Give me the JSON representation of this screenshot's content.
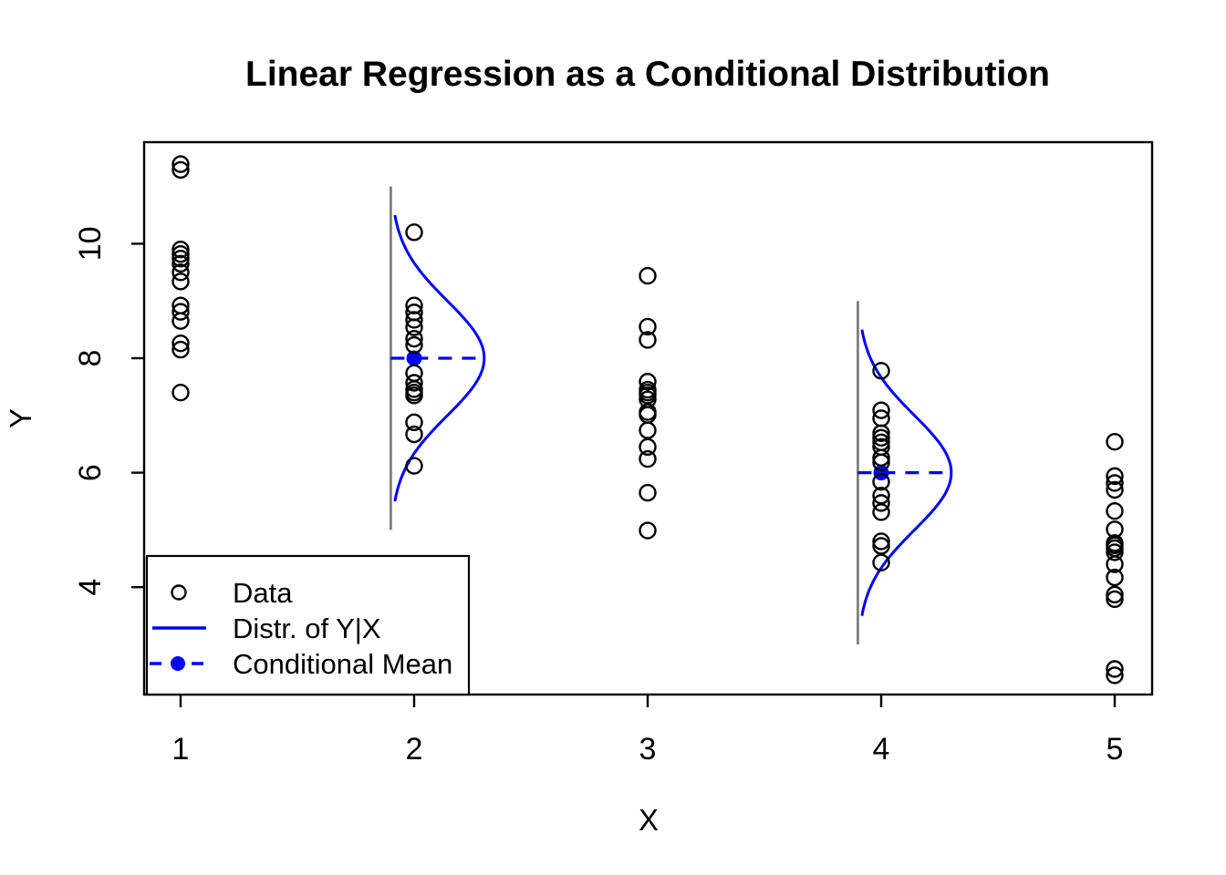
{
  "title": "Linear Regression as a Conditional Distribution",
  "axes": {
    "xlabel": "X",
    "ylabel": "Y"
  },
  "legend": {
    "items": [
      {
        "symbol": "open-circle",
        "label": "Data"
      },
      {
        "symbol": "solid-line",
        "label": "Distr. of Y|X"
      },
      {
        "symbol": "dashed-line-with-dot",
        "label": "Conditional Mean"
      }
    ]
  },
  "colors": {
    "accent_blue": "#0000FF",
    "support_gray": "#7F7F7F",
    "foreground": "#000000",
    "background": "#FFFFFF"
  },
  "chart_data": {
    "type": "scatter",
    "title": "Linear Regression as a Conditional Distribution",
    "xlabel": "X",
    "ylabel": "Y",
    "xlim": [
      0.84,
      5.17
    ],
    "ylim": [
      2.1,
      11.8
    ],
    "x_ticks": [
      1,
      2,
      3,
      4,
      5
    ],
    "y_ticks": [
      4,
      6,
      8,
      10
    ],
    "grid": false,
    "legend_position": "bottom-left",
    "point_style": "open-circle",
    "series": [
      {
        "x": 1,
        "values": [
          11.39,
          11.29,
          9.9,
          9.82,
          9.74,
          9.65,
          9.5,
          9.34,
          8.92,
          8.81,
          8.65,
          8.26,
          8.15,
          7.4
        ]
      },
      {
        "x": 2,
        "values": [
          10.2,
          8.92,
          8.8,
          8.67,
          8.54,
          8.34,
          8.23,
          7.74,
          7.57,
          7.46,
          7.4,
          7.35,
          6.88,
          6.67,
          6.12
        ]
      },
      {
        "x": 3,
        "values": [
          9.44,
          8.55,
          8.32,
          7.59,
          7.45,
          7.4,
          7.35,
          7.28,
          7.06,
          7.01,
          6.74,
          6.45,
          6.24,
          5.65,
          4.99
        ]
      },
      {
        "x": 4,
        "values": [
          7.78,
          7.09,
          6.95,
          6.69,
          6.61,
          6.53,
          6.45,
          6.26,
          6.18,
          5.84,
          5.6,
          5.47,
          5.31,
          4.8,
          4.72,
          4.43
        ]
      },
      {
        "x": 5,
        "values": [
          6.54,
          5.94,
          5.82,
          5.7,
          5.33,
          5.01,
          4.77,
          4.73,
          4.68,
          4.61,
          4.4,
          4.17,
          3.87,
          3.79,
          2.57,
          2.46
        ]
      }
    ],
    "conditional_distributions": [
      {
        "at_x": 2,
        "baseline_x": 1.9,
        "mean": 8,
        "sd": 1,
        "amplitude": 0.4,
        "curve_span_sd": 2.5,
        "support_line_span_sd": 3
      },
      {
        "at_x": 4,
        "baseline_x": 3.9,
        "mean": 6,
        "sd": 1,
        "amplitude": 0.4,
        "curve_span_sd": 2.5,
        "support_line_span_sd": 3
      }
    ],
    "conditional_means": [
      {
        "x": 2,
        "y": 8
      },
      {
        "x": 4,
        "y": 6
      }
    ],
    "legend_labels": [
      "Data",
      "Distr. of Y|X",
      "Conditional Mean"
    ]
  }
}
